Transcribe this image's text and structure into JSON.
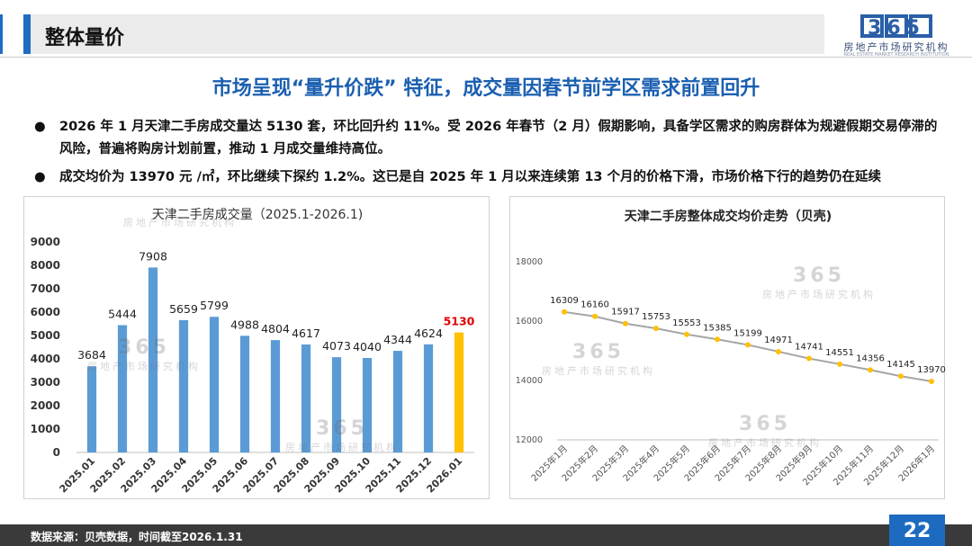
{
  "header": {
    "title": "整体量价"
  },
  "logo": {
    "mark": "365",
    "name_cn": "房地产市场研究机构",
    "name_en": "REAL ESTATE MARKET RESEARCH INSTITUTION"
  },
  "headline": "市场呈现“量升价跌” 特征，成交量因春节前学区需求前置回升",
  "bullets": [
    {
      "dot": "●",
      "text": "2026 年 1 月天津二手房成交量达 5130 套，环比回升约 11%。受 2026 年春节（2 月）假期影响，具备学区需求的购房群体为规避假期交易停滞的风险，普遍将购房计划前置，推动 1 月成交量维持高位。"
    },
    {
      "dot": "●",
      "text": "成交均价为 13970 元 /㎡，环比继续下探约 1.2%。这已是自 2025 年 1 月以来连续第 13 个月的价格下滑，市场价格下行的趋势仍在延续"
    }
  ],
  "watermark": {
    "number": "365",
    "text": "房地产市场研究机构"
  },
  "chart_data": [
    {
      "type": "bar",
      "title": "天津二手房成交量（2025.1-2026.1)",
      "categories": [
        "2025.01",
        "2025.02",
        "2025.03",
        "2025.04",
        "2025.05",
        "2025.06",
        "2025.07",
        "2025.08",
        "2025.09",
        "2025.10",
        "2025.11",
        "2025.12",
        "2026.01"
      ],
      "values": [
        3684,
        5444,
        7908,
        5659,
        5799,
        4988,
        4804,
        4617,
        4073,
        4040,
        4344,
        4624,
        5130
      ],
      "ylim": [
        0,
        9000
      ],
      "yticks": [
        0,
        1000,
        2000,
        3000,
        4000,
        5000,
        6000,
        7000,
        8000,
        9000
      ],
      "colors": {
        "bar": "#5b9bd5",
        "highlight": "#ffc000",
        "highlight_label": "#e00000"
      },
      "highlight_index": 12,
      "grid": false
    },
    {
      "type": "line",
      "title": "天津二手房整体成交均价走势（贝壳)",
      "categories": [
        "2025年1月",
        "2025年2月",
        "2025年3月",
        "2025年4月",
        "2025年5月",
        "2025年6月",
        "2025年7月",
        "2025年8月",
        "2025年9月",
        "2025年10月",
        "2025年11月",
        "2025年12月",
        "2026年1月"
      ],
      "values": [
        16309,
        16160,
        15917,
        15753,
        15553,
        15385,
        15199,
        14971,
        14741,
        14551,
        14356,
        14145,
        13970
      ],
      "ylim": [
        12000,
        18000
      ],
      "yticks": [
        12000,
        14000,
        16000,
        18000
      ],
      "colors": {
        "line": "#a5a5a5",
        "marker": "#ffc000"
      },
      "grid": false
    }
  ],
  "footer": {
    "source": "数据来源：贝壳数据，时间截至2026.1.31",
    "page": "22"
  }
}
